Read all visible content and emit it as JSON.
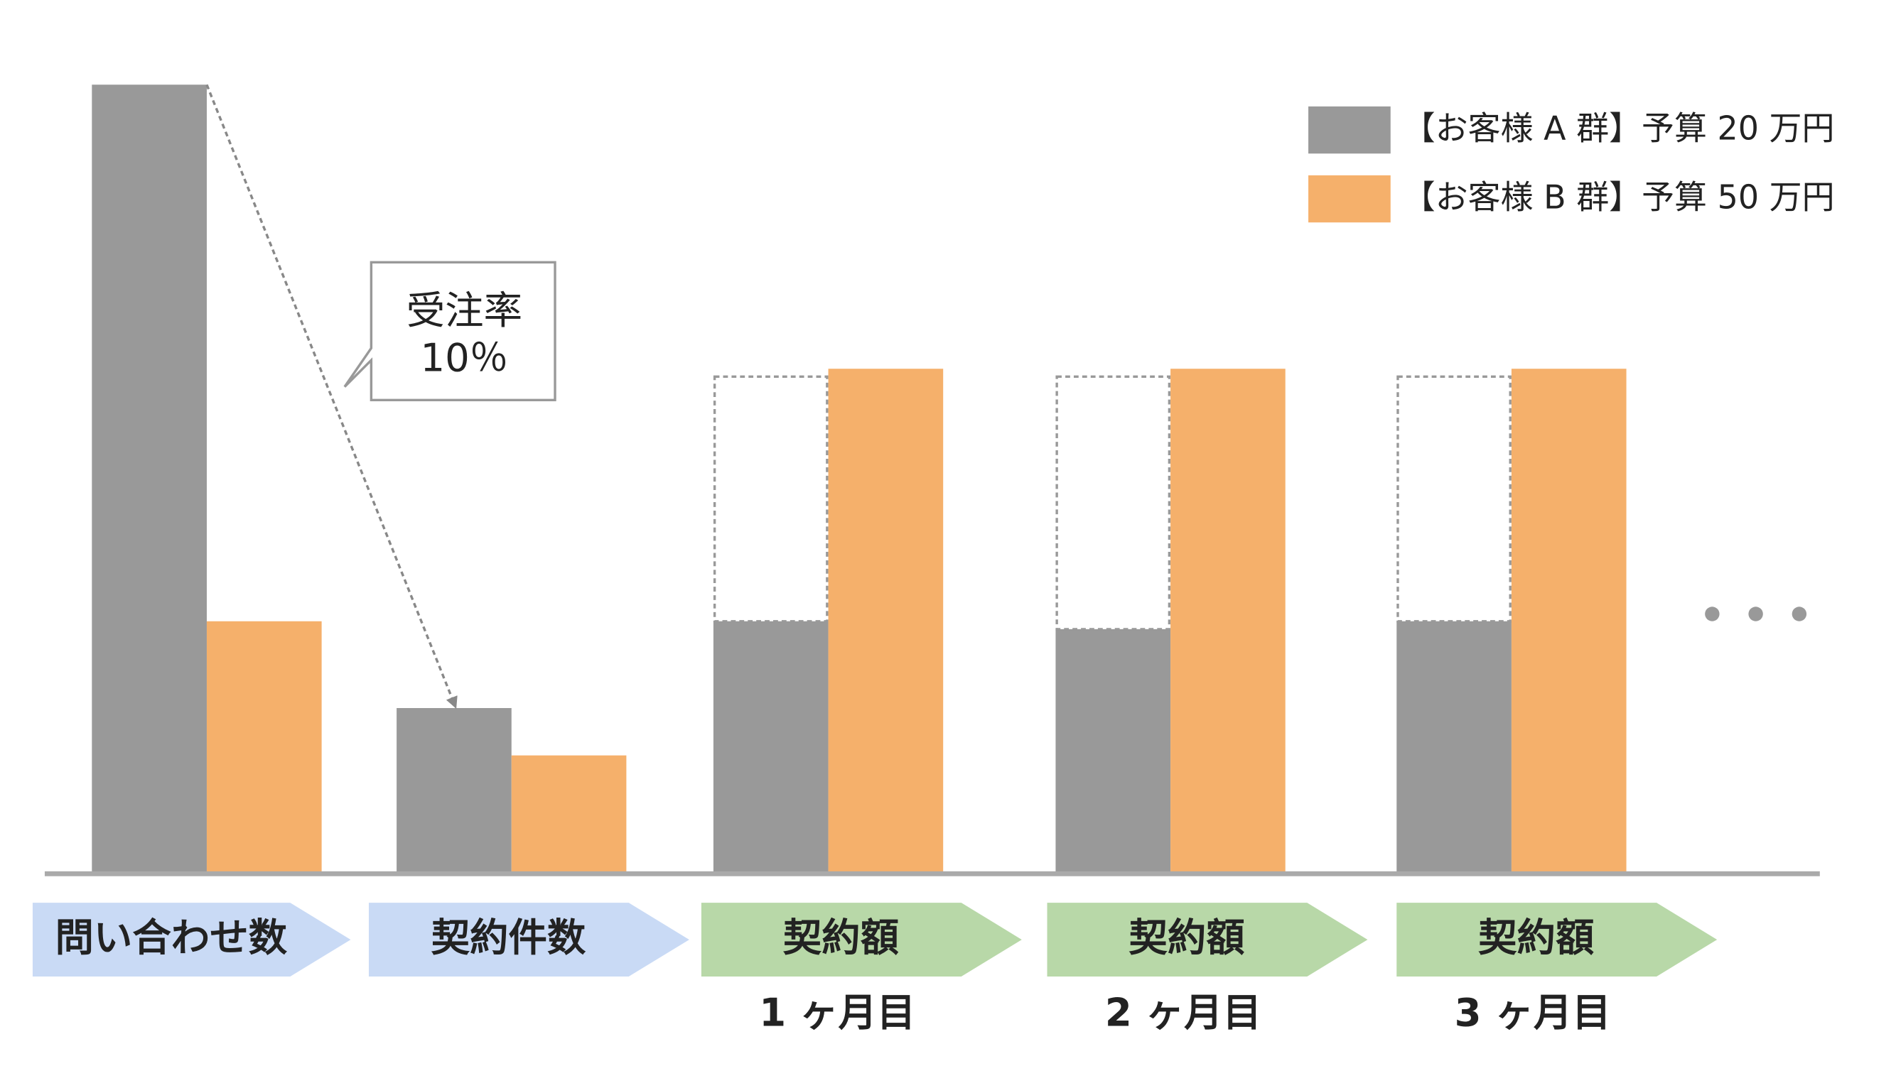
{
  "chart_data": {
    "type": "bar",
    "categories": [
      "問い合わせ数",
      "契約件数",
      "契約額",
      "契約額",
      "契約額"
    ],
    "sublabels": [
      null,
      null,
      "1 ヶ月目",
      "2 ヶ月目",
      "3 ヶ月目"
    ],
    "category_colors": [
      "#c9daf5",
      "#c9daf5",
      "#b8d8a8",
      "#b8d8a8",
      "#b8d8a8"
    ],
    "series": [
      {
        "name": "【お客様 A 群】予算 20 万円",
        "color": "#999999",
        "values": [
          100,
          21,
          32,
          31,
          32
        ],
        "outline_values": [
          null,
          null,
          63,
          63,
          63
        ]
      },
      {
        "name": "【お客様 B 群】予算 50 万円",
        "color": "#f5b06b",
        "values": [
          32,
          15,
          64,
          64,
          64
        ]
      }
    ],
    "ylim": [
      0,
      100
    ],
    "annotation": {
      "lines": [
        "受注率",
        "10％"
      ],
      "from_index": 0,
      "to_index": 1
    }
  }
}
